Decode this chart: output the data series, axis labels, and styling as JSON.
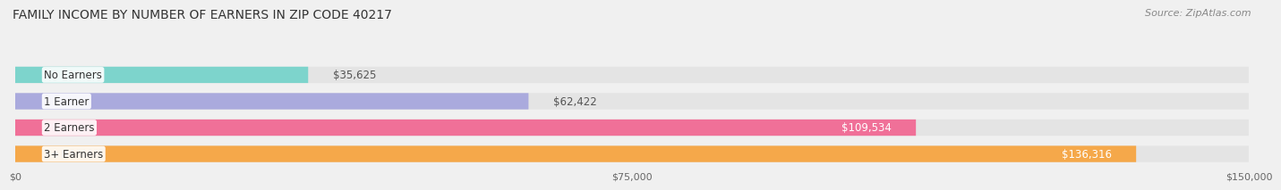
{
  "title": "FAMILY INCOME BY NUMBER OF EARNERS IN ZIP CODE 40217",
  "source": "Source: ZipAtlas.com",
  "categories": [
    "No Earners",
    "1 Earner",
    "2 Earners",
    "3+ Earners"
  ],
  "values": [
    35625,
    62422,
    109534,
    136316
  ],
  "bar_colors": [
    "#7DD4CC",
    "#AAAADD",
    "#F07098",
    "#F5A84A"
  ],
  "label_colors": [
    "#333333",
    "#333333",
    "#ffffff",
    "#ffffff"
  ],
  "value_labels": [
    "$35,625",
    "$62,422",
    "$109,534",
    "$136,316"
  ],
  "x_max": 150000,
  "x_ticks": [
    0,
    75000,
    150000
  ],
  "x_tick_labels": [
    "$0",
    "$75,000",
    "$150,000"
  ],
  "background_color": "#f0f0f0",
  "bar_bg_color": "#e4e4e4",
  "title_fontsize": 10,
  "source_fontsize": 8,
  "label_fontsize": 8.5,
  "value_fontsize": 8.5
}
